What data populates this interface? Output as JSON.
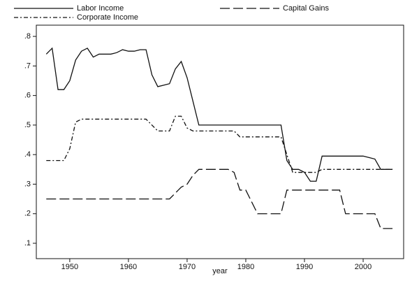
{
  "chart_data": {
    "type": "line",
    "x_label": "year",
    "x": [
      1946,
      1947,
      1948,
      1949,
      1950,
      1951,
      1952,
      1953,
      1954,
      1955,
      1956,
      1957,
      1958,
      1959,
      1960,
      1961,
      1962,
      1963,
      1964,
      1965,
      1966,
      1967,
      1968,
      1969,
      1970,
      1971,
      1972,
      1973,
      1974,
      1975,
      1976,
      1977,
      1978,
      1979,
      1980,
      1981,
      1982,
      1983,
      1984,
      1985,
      1986,
      1987,
      1988,
      1989,
      1990,
      1991,
      1992,
      1993,
      1994,
      1995,
      1996,
      1997,
      1998,
      1999,
      2000,
      2001,
      2002,
      2003,
      2004,
      2005
    ],
    "series": [
      {
        "name": "Labor Income",
        "color": "#111111",
        "dash": "solid",
        "values": [
          0.74,
          0.76,
          0.62,
          0.62,
          0.65,
          0.72,
          0.75,
          0.76,
          0.73,
          0.74,
          0.74,
          0.74,
          0.745,
          0.755,
          0.75,
          0.75,
          0.755,
          0.755,
          0.67,
          0.63,
          0.635,
          0.64,
          0.69,
          0.715,
          0.66,
          0.58,
          0.5,
          0.5,
          0.5,
          0.5,
          0.5,
          0.5,
          0.5,
          0.5,
          0.5,
          0.5,
          0.5,
          0.5,
          0.5,
          0.5,
          0.5,
          0.38,
          0.35,
          0.35,
          0.34,
          0.31,
          0.31,
          0.395,
          0.395,
          0.395,
          0.395,
          0.395,
          0.395,
          0.395,
          0.395,
          0.39,
          0.385,
          0.35,
          0.35,
          0.35
        ]
      },
      {
        "name": "Capital Gains",
        "color": "#111111",
        "dash": "longdash",
        "values": [
          0.25,
          0.25,
          0.25,
          0.25,
          0.25,
          0.25,
          0.25,
          0.25,
          0.25,
          0.25,
          0.25,
          0.25,
          0.25,
          0.25,
          0.25,
          0.25,
          0.25,
          0.25,
          0.25,
          0.25,
          0.25,
          0.25,
          0.27,
          0.29,
          0.3,
          0.33,
          0.35,
          0.35,
          0.35,
          0.35,
          0.35,
          0.35,
          0.34,
          0.28,
          0.28,
          0.24,
          0.2,
          0.2,
          0.2,
          0.2,
          0.2,
          0.28,
          0.28,
          0.28,
          0.28,
          0.28,
          0.28,
          0.28,
          0.28,
          0.28,
          0.28,
          0.2,
          0.2,
          0.2,
          0.2,
          0.2,
          0.2,
          0.15,
          0.15,
          0.15
        ]
      },
      {
        "name": "Corporate Income",
        "color": "#111111",
        "dash": "dashdot",
        "values": [
          0.38,
          0.38,
          0.38,
          0.38,
          0.42,
          0.51,
          0.52,
          0.52,
          0.52,
          0.52,
          0.52,
          0.52,
          0.52,
          0.52,
          0.52,
          0.52,
          0.52,
          0.52,
          0.5,
          0.48,
          0.48,
          0.48,
          0.53,
          0.53,
          0.49,
          0.48,
          0.48,
          0.48,
          0.48,
          0.48,
          0.48,
          0.48,
          0.48,
          0.46,
          0.46,
          0.46,
          0.46,
          0.46,
          0.46,
          0.46,
          0.46,
          0.4,
          0.34,
          0.34,
          0.34,
          0.34,
          0.34,
          0.35,
          0.35,
          0.35,
          0.35,
          0.35,
          0.35,
          0.35,
          0.35,
          0.35,
          0.35,
          0.35,
          0.35,
          0.35
        ]
      }
    ],
    "xlim": [
      1944.3,
      2006.9
    ],
    "xticks": [
      1950,
      1960,
      1970,
      1980,
      1990,
      2000
    ],
    "ylim": [
      0.048,
      0.838
    ],
    "yticks": [
      {
        "value": 0.1,
        "label": ".1"
      },
      {
        "value": 0.2,
        "label": ".2"
      },
      {
        "value": 0.3,
        "label": ".3"
      },
      {
        "value": 0.4,
        "label": ".4"
      },
      {
        "value": 0.5,
        "label": ".5"
      },
      {
        "value": 0.6,
        "label": ".6"
      },
      {
        "value": 0.7,
        "label": ".7"
      },
      {
        "value": 0.8,
        "label": ".8"
      }
    ],
    "grid": false
  }
}
